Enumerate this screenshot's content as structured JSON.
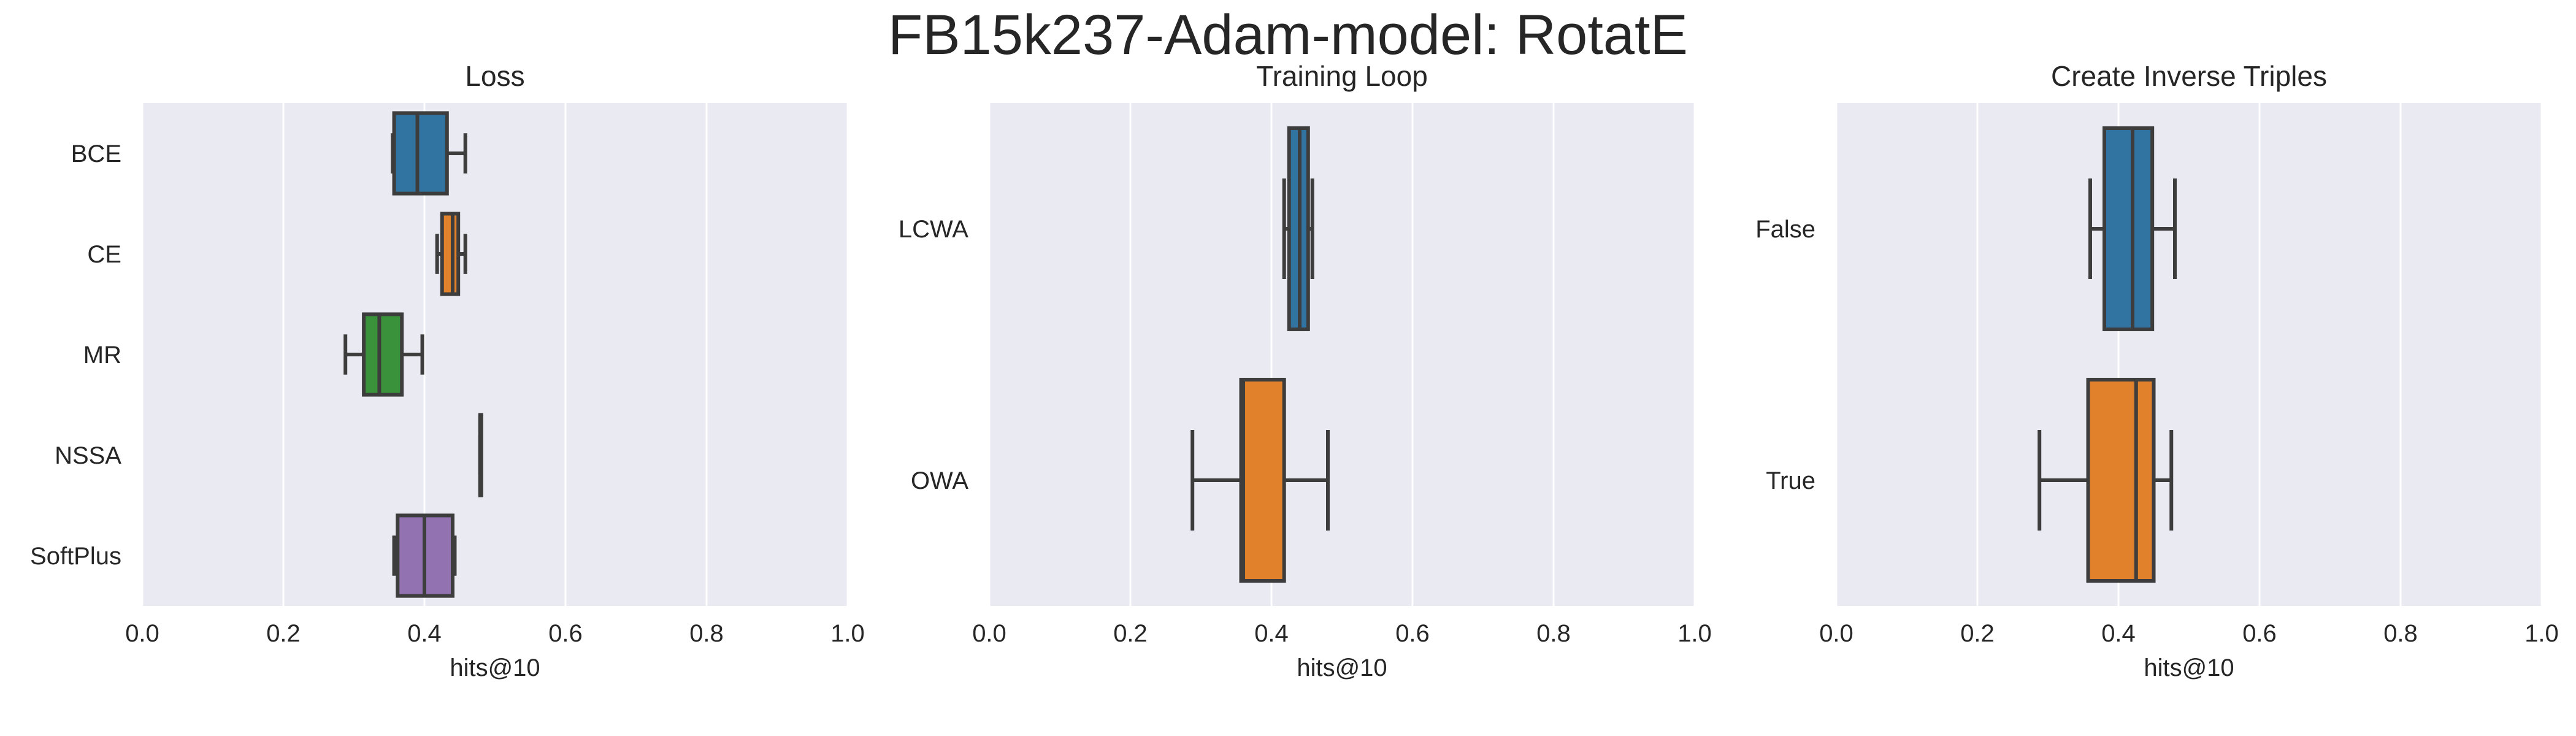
{
  "figure": {
    "title": "FB15k237-Adam-model: RotatE"
  },
  "chart_data": [
    {
      "type": "boxplot",
      "orientation": "horizontal",
      "title": "Loss",
      "xlabel": "hits@10",
      "ylabel": "",
      "xlim": [
        0.0,
        1.0
      ],
      "xticks": [
        "0.0",
        "0.2",
        "0.4",
        "0.6",
        "0.8",
        "1.0"
      ],
      "grid": true,
      "categories": [
        "BCE",
        "CE",
        "MR",
        "NSSA",
        "SoftPlus"
      ],
      "colors": [
        "#3274a1",
        "#e1812c",
        "#3a923a",
        "#c03d3e",
        "#9372b2"
      ],
      "boxes": [
        {
          "whislo": 0.355,
          "q1": 0.357,
          "med": 0.39,
          "q3": 0.432,
          "whishi": 0.458
        },
        {
          "whislo": 0.418,
          "q1": 0.425,
          "med": 0.44,
          "q3": 0.448,
          "whishi": 0.458
        },
        {
          "whislo": 0.288,
          "q1": 0.314,
          "med": 0.336,
          "q3": 0.368,
          "whishi": 0.397
        },
        {
          "whislo": 0.479,
          "q1": 0.479,
          "med": 0.479,
          "q3": 0.48,
          "whishi": 0.48
        },
        {
          "whislo": 0.357,
          "q1": 0.362,
          "med": 0.4,
          "q3": 0.44,
          "whishi": 0.443
        }
      ]
    },
    {
      "type": "boxplot",
      "orientation": "horizontal",
      "title": "Training Loop",
      "xlabel": "hits@10",
      "ylabel": "",
      "xlim": [
        0.0,
        1.0
      ],
      "xticks": [
        "0.0",
        "0.2",
        "0.4",
        "0.6",
        "0.8",
        "1.0"
      ],
      "grid": true,
      "categories": [
        "LCWA",
        "OWA"
      ],
      "colors": [
        "#3274a1",
        "#e1812c"
      ],
      "boxes": [
        {
          "whislo": 0.418,
          "q1": 0.425,
          "med": 0.44,
          "q3": 0.452,
          "whishi": 0.458
        },
        {
          "whislo": 0.288,
          "q1": 0.357,
          "med": 0.36,
          "q3": 0.418,
          "whishi": 0.48
        }
      ]
    },
    {
      "type": "boxplot",
      "orientation": "horizontal",
      "title": "Create Inverse Triples",
      "xlabel": "hits@10",
      "ylabel": "",
      "xlim": [
        0.0,
        1.0
      ],
      "xticks": [
        "0.0",
        "0.2",
        "0.4",
        "0.6",
        "0.8",
        "1.0"
      ],
      "grid": true,
      "categories": [
        "False",
        "True"
      ],
      "colors": [
        "#3274a1",
        "#e1812c"
      ],
      "boxes": [
        {
          "whislo": 0.36,
          "q1": 0.38,
          "med": 0.42,
          "q3": 0.448,
          "whishi": 0.48
        },
        {
          "whislo": 0.288,
          "q1": 0.357,
          "med": 0.425,
          "q3": 0.45,
          "whishi": 0.475
        }
      ]
    }
  ]
}
